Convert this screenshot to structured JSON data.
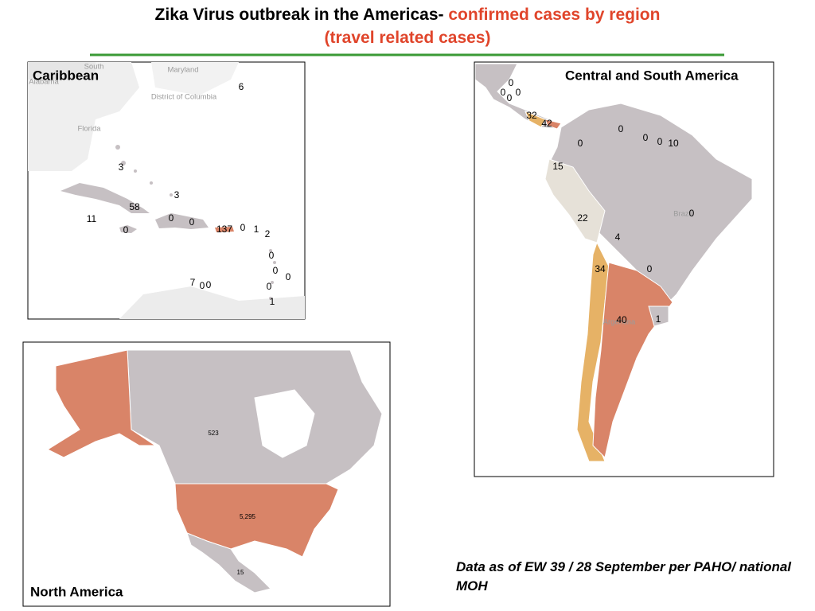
{
  "header": {
    "title": "Zika Virus outbreak in the Americas-",
    "title_highlight": "confirmed cases by region (travel related cases)"
  },
  "panels": [
    {
      "title": "Caribbean",
      "base_labels": [
        "Maryland",
        "District of Columbia",
        "Florida",
        "Alabama",
        "South"
      ],
      "case_labels": [
        "6",
        "3",
        "3",
        "58",
        "11",
        "0",
        "0",
        "0",
        "137",
        "0",
        "1",
        "2",
        "0",
        "0",
        "0",
        "7",
        "0",
        "0",
        "0",
        "1"
      ]
    },
    {
      "title": "Central and South America",
      "base_labels": [
        "Brazil",
        "Argentina"
      ],
      "case_labels": [
        "0",
        "0",
        "0",
        "0",
        "32",
        "42",
        "0",
        "0",
        "0",
        "10",
        "0",
        "15",
        "22",
        "0",
        "4",
        "34",
        "0",
        "40",
        "1"
      ]
    },
    {
      "title": "North America",
      "base_labels": [],
      "case_labels": [
        "523",
        "5,295",
        "15"
      ]
    }
  ],
  "footnote": "Data as of EW 39 / 28 September per PAHO/ national MOH"
}
